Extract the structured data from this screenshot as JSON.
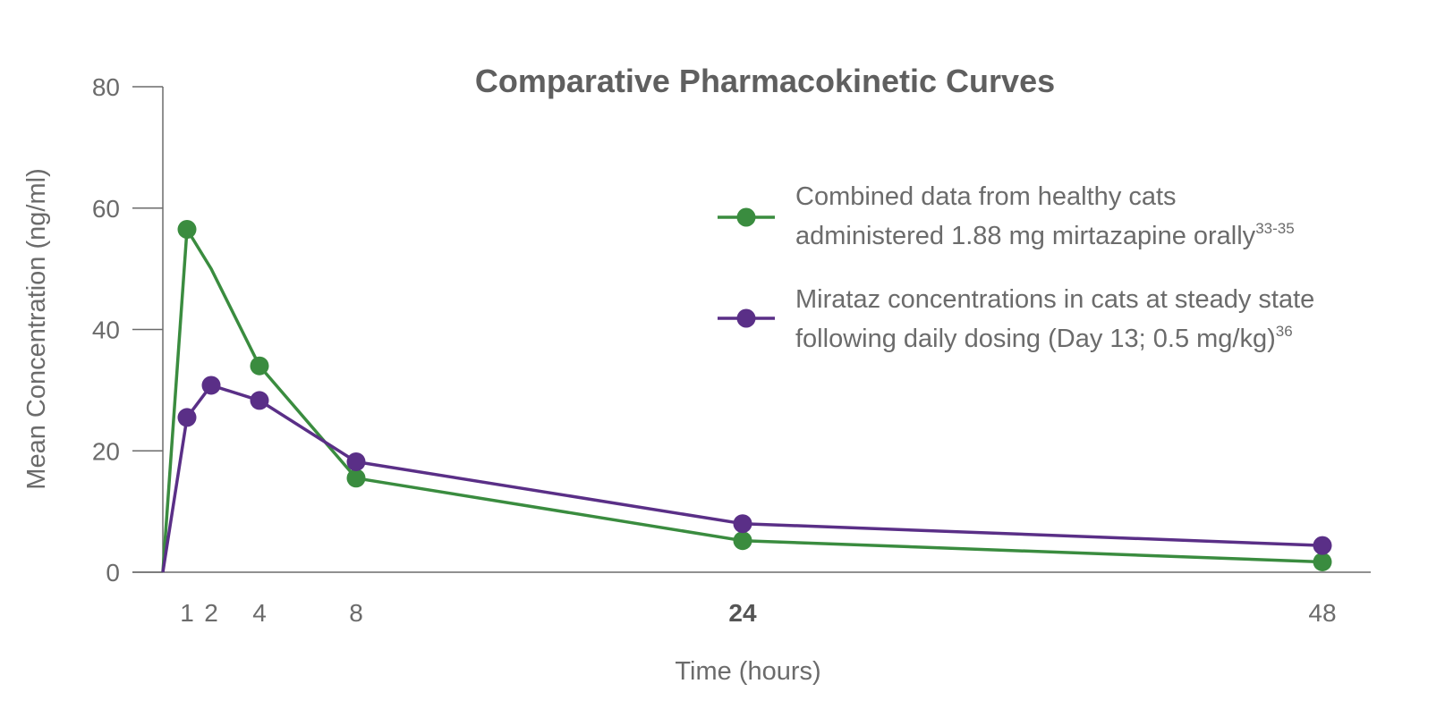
{
  "chart_data": {
    "type": "line",
    "title": "Comparative Pharmacokinetic Curves",
    "xlabel": "Time (hours)",
    "ylabel": "Mean Concentration (ng/ml)",
    "ylim": [
      0,
      80
    ],
    "xlim": [
      0,
      50
    ],
    "yticks": [
      0,
      20,
      40,
      60,
      80
    ],
    "xticks": [
      1,
      2,
      4,
      8,
      24,
      48
    ],
    "xtick_labels": [
      "1",
      "2",
      "4",
      "8",
      "24",
      "48"
    ],
    "bold_xticks": [
      "24"
    ],
    "grid": false,
    "legend_position": "top-right",
    "series": [
      {
        "name": "Combined data from healthy cats administered 1.88 mg mirtazapine orally",
        "legend_line1": "Combined data from healthy cats",
        "legend_line2": "administered 1.88 mg mirtazapine orally",
        "legend_sup": "33-35",
        "color": "#3a8c3f",
        "x": [
          0,
          1,
          2,
          4,
          8,
          24,
          48
        ],
        "y": [
          0,
          56.5,
          50,
          34,
          15.5,
          5.2,
          1.7
        ],
        "markers": [
          false,
          true,
          false,
          true,
          true,
          true,
          true
        ]
      },
      {
        "name": "Mirataz concentrations in cats at steady state following daily dosing (Day 13; 0.5 mg/kg)",
        "legend_line1": "Mirataz concentrations in cats at steady state",
        "legend_line2": "following daily dosing (Day 13; 0.5 mg/kg)",
        "legend_sup": "36",
        "color": "#5a2f87",
        "x": [
          0,
          1,
          2,
          4,
          8,
          24,
          48
        ],
        "y": [
          0,
          25.5,
          30.8,
          28.3,
          18.2,
          8.0,
          4.4
        ],
        "markers": [
          false,
          true,
          true,
          true,
          true,
          true,
          true
        ]
      }
    ]
  }
}
